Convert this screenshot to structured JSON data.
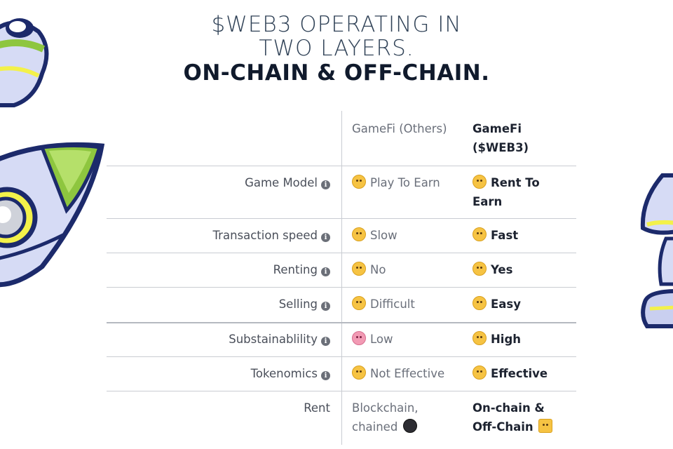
{
  "title": {
    "line1": "$WEB3 OPERATING IN",
    "line2": "TWO LAYERS.",
    "line3": "ON-CHAIN & OFF-CHAIN."
  },
  "table": {
    "headers": {
      "col2": "GameFi (Others)",
      "col3_line1": "GameFi",
      "col3_line2": "($WEB3)"
    },
    "rows": [
      {
        "label": "Game Model",
        "info": true,
        "others": "Play To Earn",
        "others_icon": "relieved-face-icon",
        "web3_line1": "Rent To",
        "web3_line2": "Earn",
        "web3_icon": "grinning-face-icon"
      },
      {
        "label": "Transaction speed",
        "info": true,
        "others": "Slow",
        "others_icon": "sleeping-face-icon",
        "web3": "Fast",
        "web3_icon": "winking-face-icon"
      },
      {
        "label": "Renting",
        "info": true,
        "others": "No",
        "others_icon": "surprised-face-icon",
        "web3": "Yes",
        "web3_icon": "sunglasses-face-icon"
      },
      {
        "label": "Selling",
        "info": true,
        "others": "Difficult",
        "others_icon": "persevering-face-icon",
        "web3": "Easy",
        "web3_icon": "smiling-face-icon"
      },
      {
        "label": "Substainablility",
        "info": true,
        "others": "Low",
        "others_icon": "flushed-face-icon",
        "web3": "High",
        "web3_icon": "kissing-face-icon"
      },
      {
        "label": "Tokenomics",
        "info": true,
        "others": "Not Effective",
        "others_icon": "dizzy-face-icon",
        "web3": "Effective",
        "web3_icon": "party-face-icon"
      },
      {
        "label": "Rent",
        "info": false,
        "others_line1": "Blockchain,",
        "others_line2": "chained",
        "others_icon": "bomb-icon",
        "web3_line1": "On-chain &",
        "web3_line2": "Off-Chain",
        "web3_icon": "party-popper-icon"
      }
    ]
  },
  "colors": {
    "accent_green": "#8ec63f",
    "navy_outline": "#1c2a6b",
    "lavender": "#c9cff0",
    "yellow": "#f3f14a"
  }
}
